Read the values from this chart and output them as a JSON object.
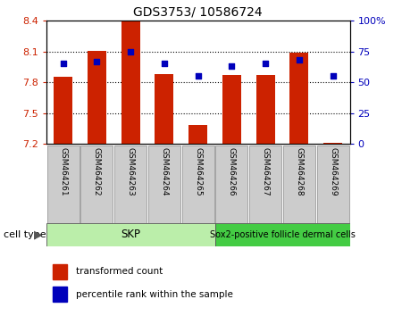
{
  "title": "GDS3753/ 10586724",
  "samples": [
    "GSM464261",
    "GSM464262",
    "GSM464263",
    "GSM464264",
    "GSM464265",
    "GSM464266",
    "GSM464267",
    "GSM464268",
    "GSM464269"
  ],
  "bar_values": [
    7.855,
    8.105,
    8.39,
    7.875,
    7.38,
    7.87,
    7.87,
    8.09,
    7.21
  ],
  "blue_dot_values": [
    65,
    67,
    75,
    65,
    55,
    63,
    65,
    68,
    55
  ],
  "bar_bottom": 7.2,
  "ylim_left": [
    7.2,
    8.4
  ],
  "ylim_right": [
    0,
    100
  ],
  "yticks_left": [
    7.2,
    7.5,
    7.8,
    8.1,
    8.4
  ],
  "yticks_right": [
    0,
    25,
    50,
    75,
    100
  ],
  "ytick_labels_left": [
    "7.2",
    "7.5",
    "7.8",
    "8.1",
    "8.4"
  ],
  "ytick_labels_right": [
    "0",
    "25",
    "50",
    "75",
    "100%"
  ],
  "bar_color": "#cc2200",
  "dot_color": "#0000bb",
  "skp_color": "#bbeeaa",
  "sox_color": "#44cc44",
  "skp_label": "SKP",
  "sox_label": "Sox2-positive follicle dermal cells",
  "cell_type_label": "cell type",
  "legend_red_label": "transformed count",
  "legend_blue_label": "percentile rank within the sample",
  "grid_color": "#000000",
  "bar_width": 0.55,
  "label_bg_color": "#cccccc",
  "tick_color_left": "#cc2200",
  "tick_color_right": "#0000bb"
}
